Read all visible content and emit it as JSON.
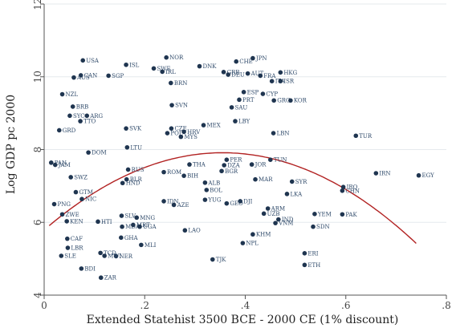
{
  "chart_data": {
    "type": "scatter",
    "xlabel": "Extended Statehist 3500 BCE - 2000 CE (1% discount)",
    "ylabel": "Log GDP pc 2000",
    "xlim": [
      0,
      0.8
    ],
    "ylim": [
      4,
      12
    ],
    "xticks": [
      0,
      0.2,
      0.4,
      0.6,
      0.8
    ],
    "xtick_labels": [
      "0",
      ".2",
      ".4",
      ".6",
      ".8"
    ],
    "yticks": [
      4,
      6,
      8,
      10,
      12
    ],
    "ytick_labels": [
      "4",
      "6",
      "8",
      "10",
      "12"
    ],
    "grid": "horizontal",
    "colors": {
      "points": "#1f3550",
      "labels": "#2f4a6a",
      "fit": "#b22222"
    },
    "fit": {
      "type": "quadratic",
      "a": -16.82,
      "b": 11.95,
      "c": 5.79
    },
    "points": [
      {
        "label": "USA",
        "x": 0.077,
        "y": 10.45
      },
      {
        "label": "CAN",
        "x": 0.073,
        "y": 10.04
      },
      {
        "label": "AUS",
        "x": 0.059,
        "y": 9.98
      },
      {
        "label": "SGP",
        "x": 0.128,
        "y": 10.03
      },
      {
        "label": "ISL",
        "x": 0.163,
        "y": 10.33
      },
      {
        "label": "NOR",
        "x": 0.243,
        "y": 10.53
      },
      {
        "label": "SWE",
        "x": 0.218,
        "y": 10.23
      },
      {
        "label": "IRL",
        "x": 0.235,
        "y": 10.14
      },
      {
        "label": "BRN",
        "x": 0.252,
        "y": 9.83
      },
      {
        "label": "DNK",
        "x": 0.309,
        "y": 10.29
      },
      {
        "label": "CHE",
        "x": 0.382,
        "y": 10.42
      },
      {
        "label": "JPN",
        "x": 0.415,
        "y": 10.51
      },
      {
        "label": "GBR",
        "x": 0.357,
        "y": 10.13
      },
      {
        "label": "DEU",
        "x": 0.366,
        "y": 10.06
      },
      {
        "label": "AUT",
        "x": 0.405,
        "y": 10.09
      },
      {
        "label": "FRA",
        "x": 0.43,
        "y": 10.03
      },
      {
        "label": "ITA",
        "x": 0.453,
        "y": 9.88
      },
      {
        "label": "HKG",
        "x": 0.47,
        "y": 10.12
      },
      {
        "label": "ISR",
        "x": 0.47,
        "y": 9.88
      },
      {
        "label": "NZL",
        "x": 0.036,
        "y": 9.52
      },
      {
        "label": "BRB",
        "x": 0.057,
        "y": 9.18
      },
      {
        "label": "SYC",
        "x": 0.051,
        "y": 8.93
      },
      {
        "label": "ARG",
        "x": 0.085,
        "y": 8.93
      },
      {
        "label": "TTO",
        "x": 0.072,
        "y": 8.78
      },
      {
        "label": "SVN",
        "x": 0.254,
        "y": 9.22
      },
      {
        "label": "ESP",
        "x": 0.397,
        "y": 9.58
      },
      {
        "label": "CYP",
        "x": 0.435,
        "y": 9.53
      },
      {
        "label": "PRT",
        "x": 0.388,
        "y": 9.37
      },
      {
        "label": "SAU",
        "x": 0.373,
        "y": 9.16
      },
      {
        "label": "GRC",
        "x": 0.457,
        "y": 9.35
      },
      {
        "label": "KOR",
        "x": 0.49,
        "y": 9.35
      },
      {
        "label": "LBY",
        "x": 0.38,
        "y": 8.78
      },
      {
        "label": "GRD",
        "x": 0.03,
        "y": 8.53
      },
      {
        "label": "MEX",
        "x": 0.317,
        "y": 8.67
      },
      {
        "label": "CZE",
        "x": 0.253,
        "y": 8.58
      },
      {
        "label": "HRV",
        "x": 0.278,
        "y": 8.49
      },
      {
        "label": "POL",
        "x": 0.245,
        "y": 8.45
      },
      {
        "label": "SVK",
        "x": 0.163,
        "y": 8.58
      },
      {
        "label": "MYS",
        "x": 0.272,
        "y": 8.35
      },
      {
        "label": "LBN",
        "x": 0.456,
        "y": 8.45
      },
      {
        "label": "TUR",
        "x": 0.62,
        "y": 8.38
      },
      {
        "label": "LTU",
        "x": 0.165,
        "y": 8.06
      },
      {
        "label": "DOM",
        "x": 0.088,
        "y": 7.92
      },
      {
        "label": "PER",
        "x": 0.363,
        "y": 7.72
      },
      {
        "label": "TUN",
        "x": 0.45,
        "y": 7.72
      },
      {
        "label": "DZA",
        "x": 0.358,
        "y": 7.57
      },
      {
        "label": "JOR",
        "x": 0.413,
        "y": 7.59
      },
      {
        "label": "THA",
        "x": 0.289,
        "y": 7.59
      },
      {
        "label": "PAN",
        "x": 0.014,
        "y": 7.64
      },
      {
        "label": "JAM",
        "x": 0.022,
        "y": 7.58
      },
      {
        "label": "RUS",
        "x": 0.167,
        "y": 7.45
      },
      {
        "label": "ROM",
        "x": 0.238,
        "y": 7.38
      },
      {
        "label": "BIH",
        "x": 0.278,
        "y": 7.28
      },
      {
        "label": "BGR",
        "x": 0.353,
        "y": 7.41
      },
      {
        "label": "MAR",
        "x": 0.42,
        "y": 7.18
      },
      {
        "label": "SYR",
        "x": 0.493,
        "y": 7.12
      },
      {
        "label": "IRN",
        "x": 0.66,
        "y": 7.35
      },
      {
        "label": "EGY",
        "x": 0.745,
        "y": 7.29
      },
      {
        "label": "IRQ",
        "x": 0.595,
        "y": 6.97
      },
      {
        "label": "CHN",
        "x": 0.593,
        "y": 6.87
      },
      {
        "label": "ALB",
        "x": 0.32,
        "y": 7.09
      },
      {
        "label": "BOL",
        "x": 0.323,
        "y": 6.89
      },
      {
        "label": "HND",
        "x": 0.156,
        "y": 7.08
      },
      {
        "label": "BLR",
        "x": 0.164,
        "y": 7.18
      },
      {
        "label": "SWZ",
        "x": 0.053,
        "y": 7.24
      },
      {
        "label": "GTM",
        "x": 0.063,
        "y": 6.83
      },
      {
        "label": "NIC",
        "x": 0.075,
        "y": 6.64
      },
      {
        "label": "LKA",
        "x": 0.483,
        "y": 6.78
      },
      {
        "label": "IDN",
        "x": 0.238,
        "y": 6.58
      },
      {
        "label": "AZE",
        "x": 0.258,
        "y": 6.48
      },
      {
        "label": "YUG",
        "x": 0.32,
        "y": 6.62
      },
      {
        "label": "DJI",
        "x": 0.39,
        "y": 6.58
      },
      {
        "label": "GEO",
        "x": 0.363,
        "y": 6.52
      },
      {
        "label": "PNG",
        "x": 0.02,
        "y": 6.5
      },
      {
        "label": "ZWE",
        "x": 0.036,
        "y": 6.22
      },
      {
        "label": "ARM",
        "x": 0.445,
        "y": 6.38
      },
      {
        "label": "UZB",
        "x": 0.437,
        "y": 6.24
      },
      {
        "label": "IND",
        "x": 0.466,
        "y": 6.08
      },
      {
        "label": "VNM",
        "x": 0.46,
        "y": 5.98
      },
      {
        "label": "YEM",
        "x": 0.538,
        "y": 6.23
      },
      {
        "label": "PAK",
        "x": 0.593,
        "y": 6.22
      },
      {
        "label": "SDN",
        "x": 0.535,
        "y": 5.88
      },
      {
        "label": "SLV",
        "x": 0.154,
        "y": 6.18
      },
      {
        "label": "MNG",
        "x": 0.184,
        "y": 6.13
      },
      {
        "label": "HTI",
        "x": 0.107,
        "y": 6.02
      },
      {
        "label": "KEN",
        "x": 0.045,
        "y": 6.03
      },
      {
        "label": "MDA",
        "x": 0.155,
        "y": 5.88
      },
      {
        "label": "MRT",
        "x": 0.177,
        "y": 5.93
      },
      {
        "label": "UGA",
        "x": 0.19,
        "y": 5.88
      },
      {
        "label": "LAO",
        "x": 0.28,
        "y": 5.78
      },
      {
        "label": "KHM",
        "x": 0.415,
        "y": 5.67
      },
      {
        "label": "GHA",
        "x": 0.153,
        "y": 5.58
      },
      {
        "label": "MLI",
        "x": 0.193,
        "y": 5.38
      },
      {
        "label": "NPL",
        "x": 0.395,
        "y": 5.43
      },
      {
        "label": "TJK",
        "x": 0.335,
        "y": 4.98
      },
      {
        "label": "ERI",
        "x": 0.518,
        "y": 5.15
      },
      {
        "label": "ETH",
        "x": 0.518,
        "y": 4.83
      },
      {
        "label": "LBR",
        "x": 0.047,
        "y": 5.3
      },
      {
        "label": "SLE",
        "x": 0.034,
        "y": 5.08
      },
      {
        "label": "CAF",
        "x": 0.046,
        "y": 5.55
      },
      {
        "label": "TCD",
        "x": 0.112,
        "y": 5.16
      },
      {
        "label": "NER",
        "x": 0.143,
        "y": 5.07
      },
      {
        "label": "MWI",
        "x": 0.12,
        "y": 5.08
      },
      {
        "label": "BDI",
        "x": 0.074,
        "y": 4.73
      },
      {
        "label": "ZAR",
        "x": 0.113,
        "y": 4.48
      }
    ]
  }
}
